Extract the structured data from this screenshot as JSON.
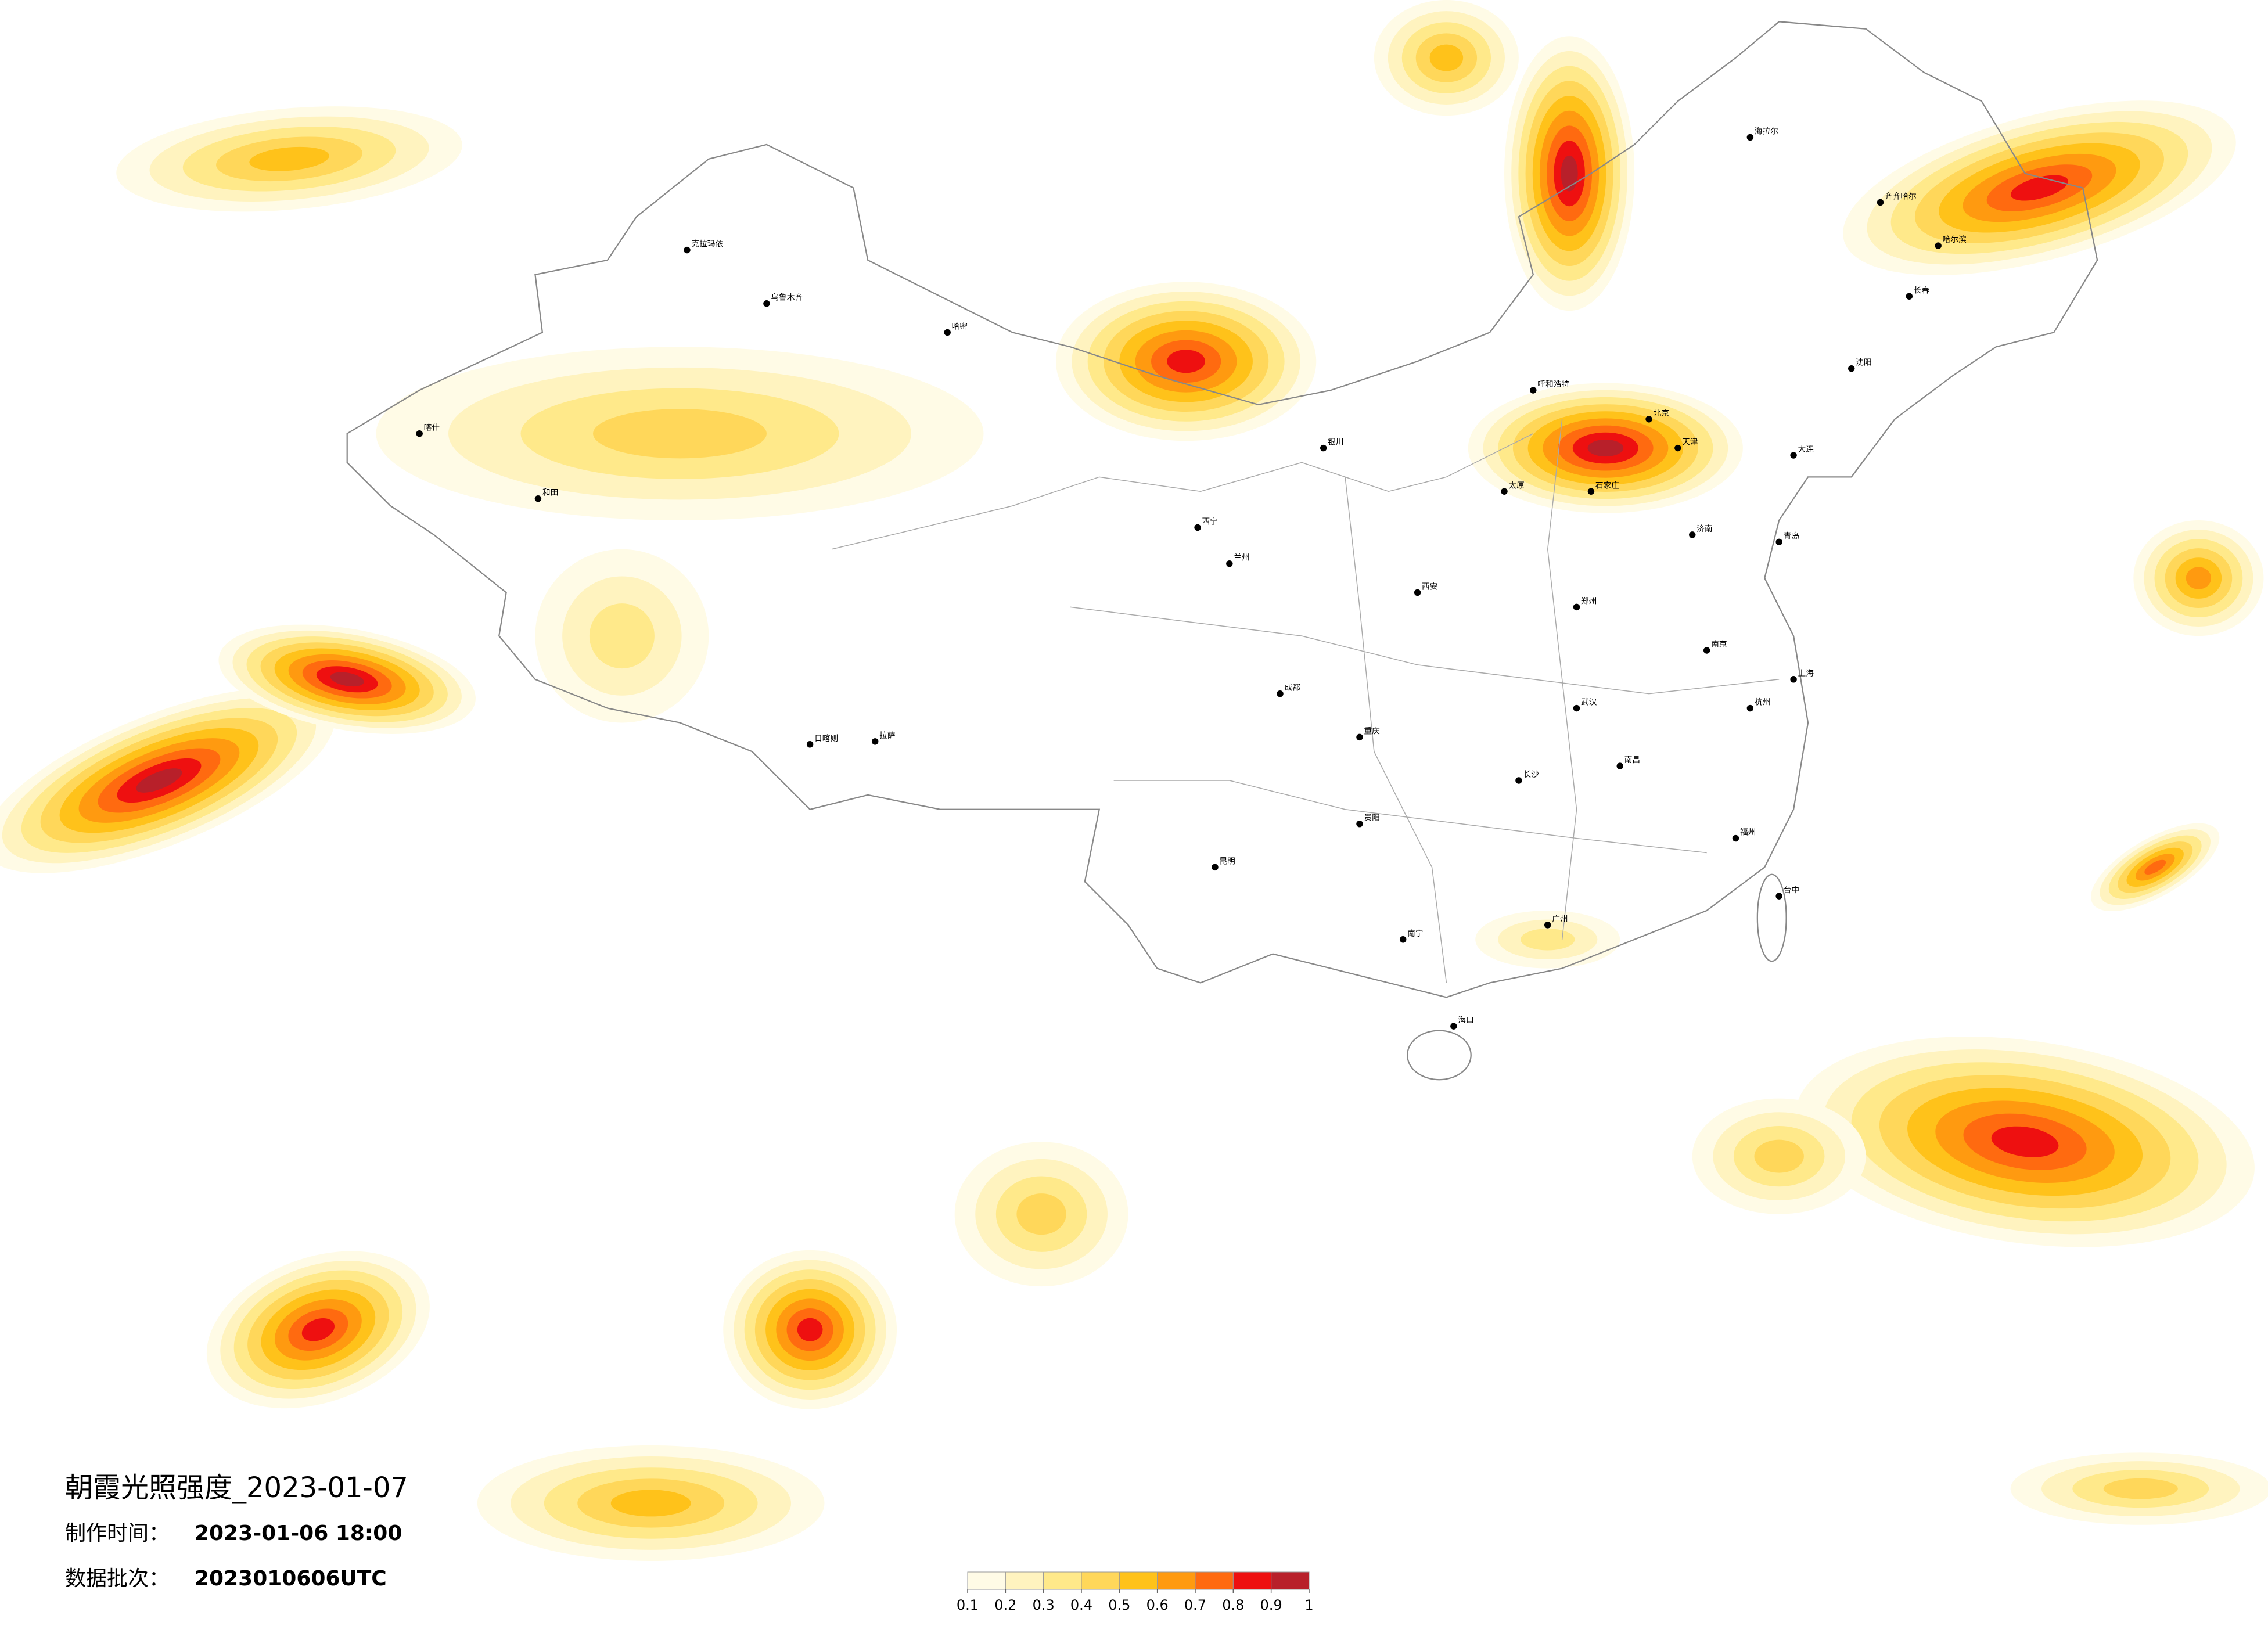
{
  "header": {
    "title": "朝霞光照强度_2023-01-07",
    "made_label": "制作时间：",
    "made_value": "2023-01-06 18:00",
    "batch_label": "数据批次：",
    "batch_value": "2023010606UTC"
  },
  "legend": {
    "ticks": [
      0.1,
      0.2,
      0.3,
      0.4,
      0.5,
      0.6,
      0.7,
      0.8,
      0.9,
      1
    ],
    "colors": [
      "#fffbe6",
      "#fff3bf",
      "#ffe98a",
      "#ffd75a",
      "#ffc21a",
      "#ff9a10",
      "#ff6a10",
      "#ee1010",
      "#b8202a"
    ]
  },
  "cities": [
    "克拉玛依",
    "乌鲁木齐",
    "哈密",
    "喀什",
    "和田",
    "拉萨",
    "日喀则",
    "西宁",
    "兰州",
    "银川",
    "呼和浩特",
    "海拉尔",
    "齐齐哈尔",
    "哈尔滨",
    "长春",
    "沈阳",
    "大连",
    "北京",
    "天津",
    "石家庄",
    "太原",
    "济南",
    "青岛",
    "郑州",
    "西安",
    "成都",
    "重庆",
    "武汉",
    "南京",
    "上海",
    "杭州",
    "长沙",
    "南昌",
    "福州",
    "贵阳",
    "昆明",
    "南宁",
    "广州",
    "海口",
    "台中"
  ]
}
